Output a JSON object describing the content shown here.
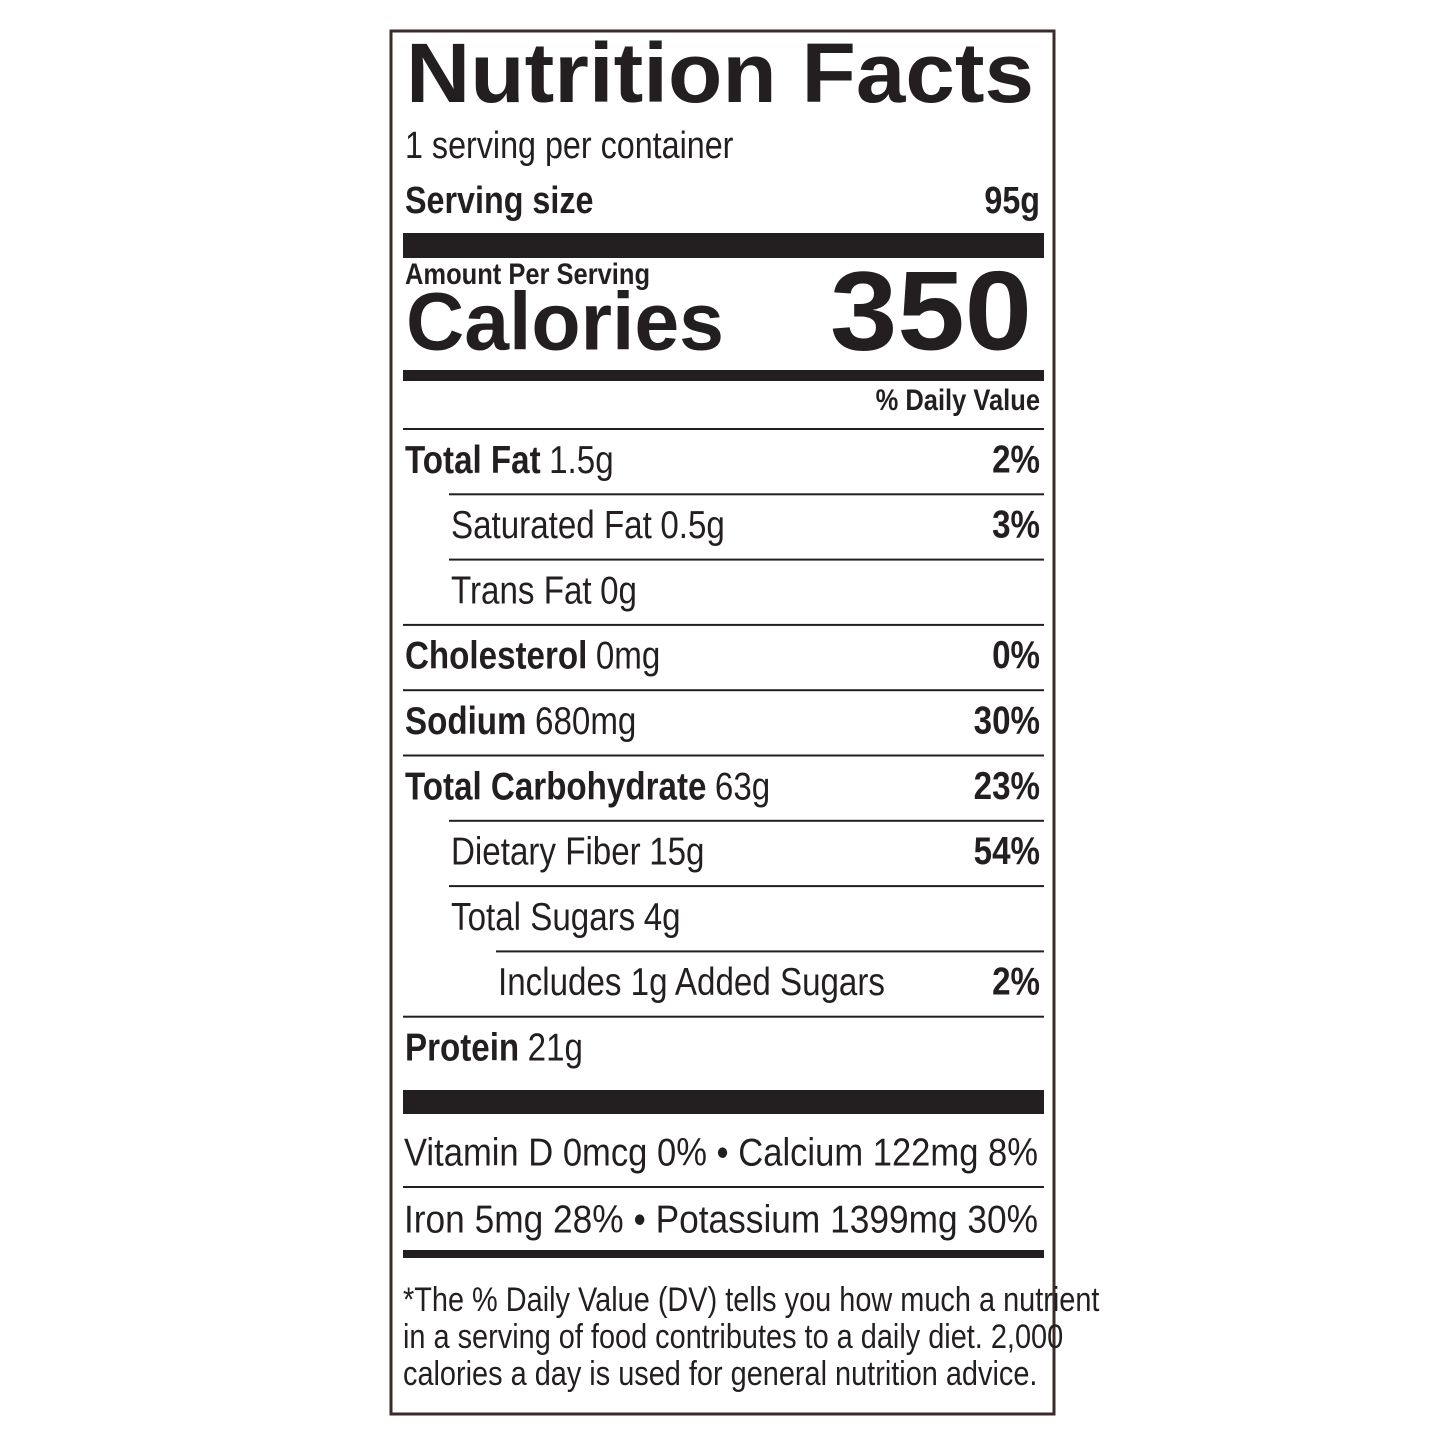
{
  "header": {
    "title": "Nutrition Facts",
    "servings": "1 serving per container",
    "serving_size_label": "Serving size",
    "serving_size": "95g"
  },
  "calories": {
    "amount_per_serving": "Amount Per Serving",
    "label": "Calories",
    "value": "350"
  },
  "dv_header": "% Daily Value",
  "nutrients": [
    {
      "name": "Total Fat",
      "amount": "1.5g",
      "dv": "2%",
      "level": 0
    },
    {
      "name": "Saturated Fat",
      "amount": "0.5g",
      "dv": "3%",
      "level": 1
    },
    {
      "name": "Trans Fat",
      "amount": "0g",
      "level": 1
    },
    {
      "name": "Cholesterol",
      "amount": "0mg",
      "dv": "0%",
      "level": 0
    },
    {
      "name": "Sodium",
      "amount": "680mg",
      "dv": "30%",
      "level": 0
    },
    {
      "name": "Total Carbohydrate",
      "amount": "63g",
      "dv": "23%",
      "level": 0
    },
    {
      "name": "Dietary Fiber",
      "amount": "15g",
      "dv": "54%",
      "level": 1
    },
    {
      "name": "Total Sugars",
      "amount": "4g",
      "level": 1
    },
    {
      "name": "Includes 1g Added Sugars",
      "dv": "2%",
      "level": 2
    },
    {
      "name": "Protein",
      "amount": "21g",
      "level": 0
    }
  ],
  "micronutrients": [
    "Vitamin D 0mcg 0% • Calcium 122mg 8%",
    "Iron 5mg 28% • Potassium 1399mg 30%"
  ],
  "footnote": [
    "*The % Daily Value (DV) tells you how much a nutrient",
    "in a serving of food contributes to a daily diet. 2,000",
    "calories a day is used for general nutrition advice."
  ]
}
